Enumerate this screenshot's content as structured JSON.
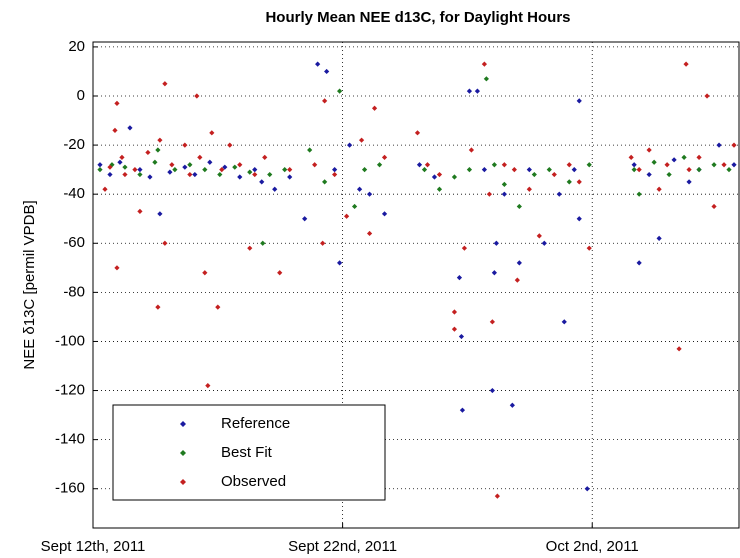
{
  "chart_data": {
    "type": "scatter",
    "title": "Hourly Mean NEE d13C, for Daylight Hours",
    "ylabel": "NEE δ13C [permil VPDB]",
    "xlim": [
      0,
      25.88
    ],
    "ylim": [
      -176,
      22
    ],
    "xticks": [
      {
        "value": 0,
        "label": "Sept 12th, 2011"
      },
      {
        "value": 10,
        "label": "Sept 22nd, 2011"
      },
      {
        "value": 20,
        "label": "Oct 2nd, 2011"
      }
    ],
    "yticks": [
      -160,
      -140,
      -120,
      -100,
      -80,
      -60,
      -40,
      -20,
      0,
      20
    ],
    "grid": true,
    "legend": "lower left",
    "series": [
      {
        "name": "Reference",
        "color": "#1a1aa0",
        "x": [
          0.28,
          0.68,
          1.08,
          1.48,
          1.88,
          2.28,
          2.68,
          3.08,
          3.68,
          4.08,
          4.68,
          5.28,
          5.88,
          6.48,
          6.76,
          7.28,
          7.88,
          8.48,
          9,
          9.36,
          9.68,
          9.88,
          10.28,
          10.68,
          11.08,
          11.68,
          13.08,
          13.68,
          14.68,
          14.76,
          14.8,
          15.08,
          15.4,
          15.68,
          16,
          16.08,
          16.16,
          16.48,
          16.8,
          17.08,
          17.48,
          18.08,
          18.68,
          18.88,
          19.28,
          19.48,
          19.48,
          19.8,
          21.68,
          21.88,
          22.28,
          22.68,
          23.28,
          23.88,
          24.28,
          25.08,
          25.68
        ],
        "values": [
          -28,
          -32,
          -27,
          -13,
          -30,
          -33,
          -48,
          -31,
          -29,
          -32,
          -27,
          -29,
          -33,
          -30,
          -35,
          -38,
          -33,
          -50,
          13,
          10,
          -30,
          -68,
          -20,
          -38,
          -40,
          -48,
          -28,
          -33,
          -74,
          -98,
          -128,
          2,
          2,
          -30,
          -120,
          -72,
          -60,
          -40,
          -126,
          -68,
          -30,
          -60,
          -40,
          -92,
          -30,
          -2,
          -50,
          -160,
          -28,
          -68,
          -32,
          -58,
          -26,
          -35,
          -30,
          -20,
          -28
        ]
      },
      {
        "name": "Best Fit",
        "color": "#1f7a1f",
        "x": [
          0.28,
          0.76,
          1.28,
          1.88,
          2.48,
          2.6,
          3.28,
          3.88,
          4.48,
          5.08,
          5.68,
          6.28,
          6.8,
          7.08,
          7.68,
          8.68,
          9.28,
          9.88,
          10.48,
          10.88,
          11.48,
          13.28,
          13.88,
          14.48,
          15.08,
          15.76,
          16.08,
          16.48,
          17.08,
          17.68,
          18.28,
          19.08,
          19.88,
          21.68,
          21.88,
          22.48,
          23.08,
          23.68,
          24.28,
          24.88,
          25.48
        ],
        "values": [
          -30,
          -28,
          -29,
          -32,
          -27,
          -22,
          -30,
          -28,
          -30,
          -32,
          -29,
          -31,
          -60,
          -32,
          -30,
          -22,
          -35,
          2,
          -45,
          -30,
          -28,
          -30,
          -38,
          -33,
          -30,
          7,
          -28,
          -36,
          -45,
          -32,
          -30,
          -35,
          -28,
          -30,
          -40,
          -27,
          -32,
          -25,
          -30,
          -28,
          -30
        ]
      },
      {
        "name": "Observed",
        "color": "#c42020",
        "x": [
          0.48,
          0.68,
          0.88,
          0.96,
          0.96,
          1.16,
          1.28,
          1.68,
          1.88,
          2.2,
          2.6,
          2.68,
          2.88,
          2.88,
          3.16,
          3.68,
          3.88,
          4.16,
          4.28,
          4.48,
          4.6,
          4.76,
          5,
          5.16,
          5.48,
          5.88,
          6.28,
          6.48,
          6.88,
          7.48,
          7.88,
          8.88,
          9.2,
          9.28,
          9.68,
          10.16,
          10.52,
          10.76,
          11.08,
          11.28,
          11.68,
          13,
          13.4,
          13.88,
          14.48,
          14.48,
          14.88,
          15.16,
          15.68,
          15.88,
          16,
          16.2,
          16.48,
          16.88,
          17,
          17.48,
          17.88,
          18.48,
          19.08,
          19.48,
          19.88,
          21.56,
          21.88,
          22.28,
          22.68,
          23,
          23.48,
          23.76,
          23.88,
          24.28,
          24.6,
          24.88,
          25.28,
          25.68
        ],
        "values": [
          -38,
          -29,
          -14,
          -3,
          -70,
          -25,
          -32,
          -30,
          -47,
          -23,
          -86,
          -18,
          5,
          -60,
          -28,
          -20,
          -32,
          0,
          -25,
          -72,
          -118,
          -15,
          -86,
          -30,
          -20,
          -28,
          -62,
          -32,
          -25,
          -72,
          -30,
          -28,
          -60,
          -2,
          -32,
          -49,
          -128,
          -18,
          -56,
          -5,
          -25,
          -15,
          -28,
          -32,
          -88,
          -95,
          -62,
          -22,
          13,
          -40,
          -92,
          -163,
          -28,
          -30,
          -75,
          -38,
          -57,
          -32,
          -28,
          -35,
          -62,
          -25,
          -30,
          -22,
          -38,
          -28,
          -103,
          13,
          -30,
          -25,
          0,
          -45,
          -28,
          -20
        ]
      }
    ]
  }
}
